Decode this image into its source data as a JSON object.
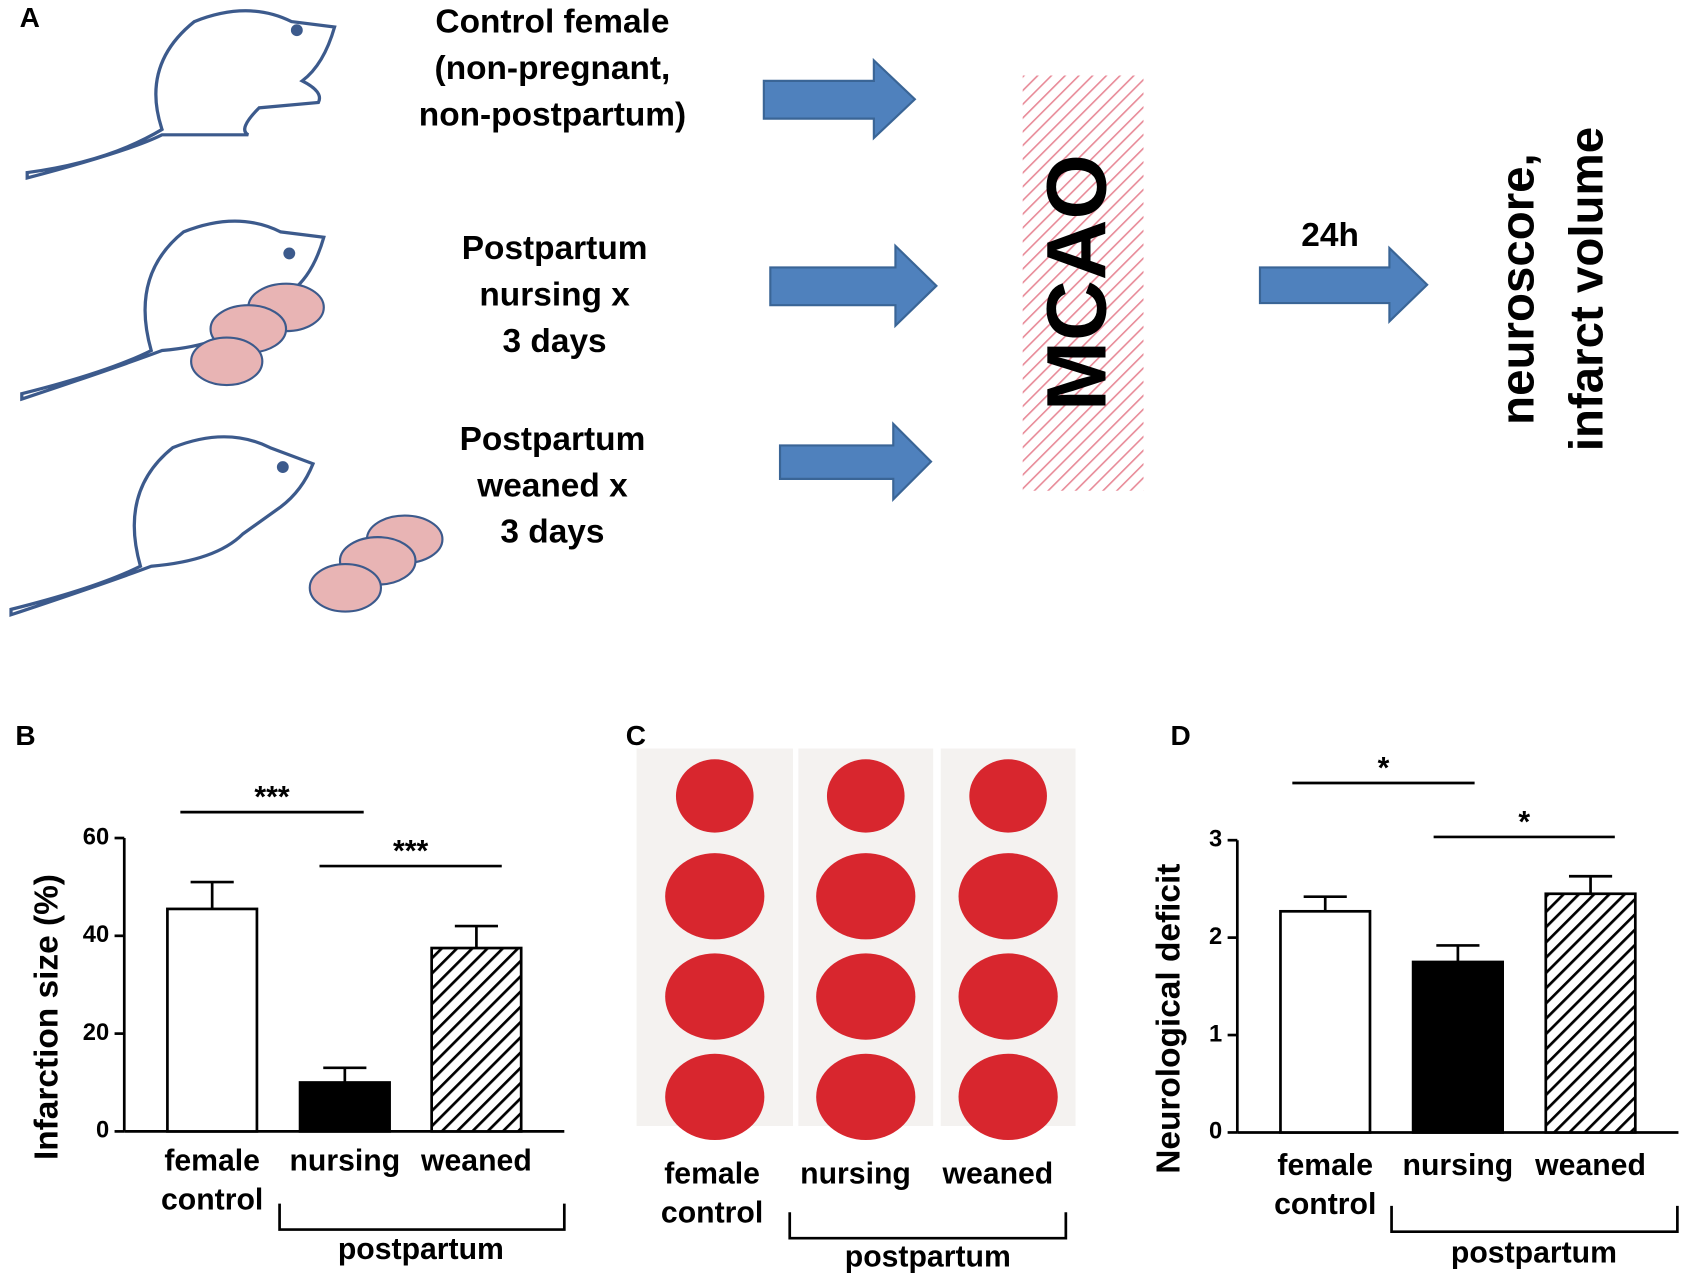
{
  "panels": [
    "A",
    "B",
    "C",
    "D"
  ],
  "diagram": {
    "groups": [
      [
        "Control female",
        "(non-pregnant,",
        "non-postpartum)"
      ],
      [
        "Postpartum",
        "nursing x",
        "3 days"
      ],
      [
        "Postpartum",
        "weaned x",
        "3 days"
      ]
    ],
    "procedure": "MCAO",
    "time": "24h",
    "outcome": [
      "neuroscore,",
      "infarct volume"
    ]
  },
  "panel_c": {
    "labels": [
      "female control",
      "nursing",
      "weaned"
    ],
    "group_label": "postpartum"
  },
  "chart_data": [
    {
      "type": "bar",
      "ylabel": "Infarction size  (%)",
      "categories": [
        "female control",
        "nursing",
        "weaned"
      ],
      "values": [
        45.5,
        10,
        37.5
      ],
      "errors": [
        5.5,
        3,
        4.5
      ],
      "colors": [
        "#ffffff",
        "#000000",
        "#ffffff"
      ],
      "hatched": [
        false,
        false,
        true
      ],
      "ylim": [
        0,
        60
      ],
      "yticks": [
        0,
        20,
        40,
        60
      ],
      "annotations": [
        "***",
        "***"
      ],
      "group_label": "postpartum"
    },
    {
      "type": "bar",
      "ylabel": "Neurological deficit",
      "categories": [
        "female control",
        "nursing",
        "weaned"
      ],
      "values": [
        2.27,
        1.75,
        2.45
      ],
      "errors": [
        0.15,
        0.17,
        0.18
      ],
      "colors": [
        "#ffffff",
        "#000000",
        "#ffffff"
      ],
      "hatched": [
        false,
        false,
        true
      ],
      "ylim": [
        0,
        3
      ],
      "yticks": [
        0,
        1,
        2,
        3
      ],
      "annotations": [
        "*",
        "*"
      ],
      "group_label": "postpartum"
    }
  ]
}
